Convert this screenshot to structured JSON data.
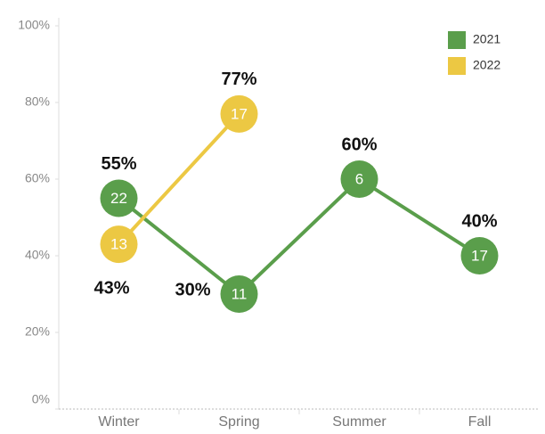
{
  "chart_data": {
    "type": "line",
    "categories": [
      "Winter",
      "Spring",
      "Summer",
      "Fall"
    ],
    "series": [
      {
        "name": "2021",
        "color": "#5a9e4b",
        "values": [
          55,
          30,
          60,
          40
        ],
        "value_labels": [
          "55%",
          "30%",
          "60%",
          "40%"
        ],
        "counts": [
          22,
          11,
          6,
          17
        ]
      },
      {
        "name": "2022",
        "color": "#ecc843",
        "values": [
          43,
          77,
          null,
          null
        ],
        "value_labels": [
          "43%",
          "77%",
          null,
          null
        ],
        "counts": [
          13,
          17,
          null,
          null
        ]
      }
    ],
    "ylim": [
      0,
      100
    ],
    "yticks": [
      {
        "value": 0,
        "label": "0%"
      },
      {
        "value": 20,
        "label": "20%"
      },
      {
        "value": 40,
        "label": "40%"
      },
      {
        "value": 60,
        "label": "60%"
      },
      {
        "value": 80,
        "label": "80%"
      },
      {
        "value": 100,
        "label": "100%"
      }
    ],
    "legend": "top-right",
    "grid": false
  }
}
